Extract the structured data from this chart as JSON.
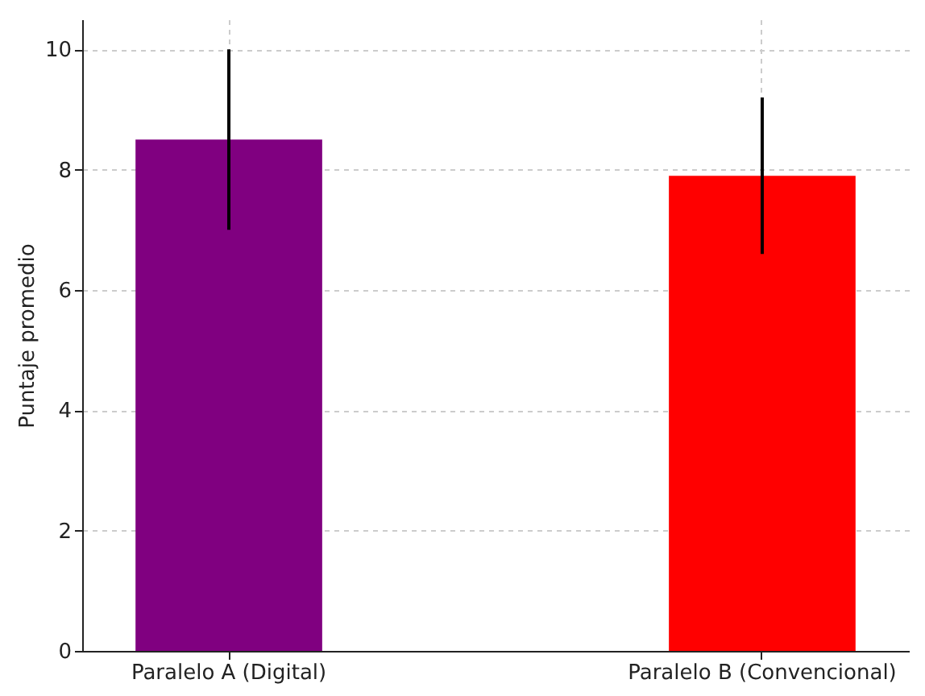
{
  "chart_data": {
    "type": "bar",
    "ylabel": "Puntaje promedio",
    "categories": [
      "Paralelo A (Digital)",
      "Paralelo B (Convencional)"
    ],
    "values": [
      8.5,
      7.9
    ],
    "colors": [
      "#800080",
      "#ff0000"
    ],
    "errors": [
      1.5,
      1.3
    ],
    "ylim": [
      0,
      10.5
    ],
    "yticks": [
      0,
      2,
      4,
      6,
      8,
      10
    ],
    "grid": true,
    "legend": false
  }
}
